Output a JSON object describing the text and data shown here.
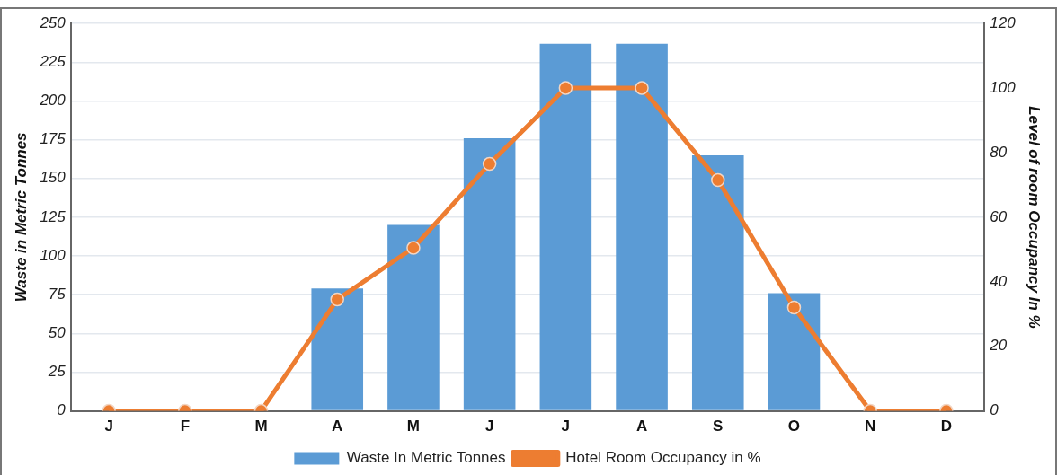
{
  "chart_data": {
    "type": "bar",
    "categories": [
      "J",
      "F",
      "M",
      "A",
      "M",
      "J",
      "J",
      "A",
      "S",
      "O",
      "N",
      "D"
    ],
    "ylabel": "Waste in Metric Tonnes",
    "y2label": "Level of room Occupancy In %",
    "series": [
      {
        "name": "Waste In Metric Tonnes",
        "color": "#5b9bd5",
        "values": [
          0,
          0,
          0,
          79,
          120,
          176,
          237,
          237,
          165,
          76,
          0,
          0
        ]
      },
      {
        "name": "Hotel Room Occupancy in %",
        "type": "line",
        "axis": "y2",
        "color": "#ed7d31",
        "values": [
          0,
          0,
          0,
          34.5,
          50.5,
          76.5,
          100,
          100,
          71.5,
          32,
          0,
          0
        ]
      }
    ],
    "ylim": [
      0,
      250
    ],
    "yticks": [
      0,
      25,
      50,
      75,
      100,
      125,
      150,
      175,
      200,
      225,
      250
    ],
    "y2lim": [
      0,
      120
    ],
    "y2ticks": [
      0,
      20,
      40,
      60,
      80,
      100,
      120
    ],
    "grid": "y",
    "legend": "bottom",
    "marker": "circle",
    "line_style": "solid"
  }
}
